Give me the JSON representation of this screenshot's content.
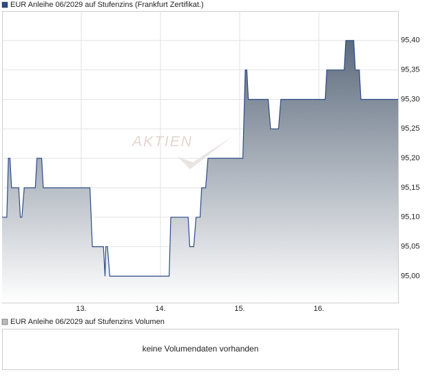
{
  "chart_data": {
    "type": "area",
    "watermark": "AKTIEN",
    "series": [
      {
        "name": "EUR Anleihe 06/2029 auf Stufenzins (Frankfurt Zertifikat.)",
        "color": "#2b4a86",
        "x": [
          12.0,
          12.06,
          12.08,
          12.1,
          12.12,
          12.21,
          12.23,
          12.25,
          12.28,
          12.42,
          12.44,
          12.5,
          12.52,
          13.11,
          13.14,
          13.28,
          13.3,
          13.31,
          13.33,
          13.36,
          14.11,
          14.13,
          14.35,
          14.37,
          14.42,
          14.45,
          14.5,
          14.52,
          14.57,
          14.6,
          15.04,
          15.07,
          15.09,
          15.11,
          15.36,
          15.39,
          15.49,
          15.52,
          16.08,
          16.1,
          16.32,
          16.34,
          16.44,
          16.46,
          16.51,
          16.53,
          17.0
        ],
        "values": [
          95.1,
          95.1,
          95.2,
          95.2,
          95.15,
          95.15,
          95.1,
          95.1,
          95.15,
          95.15,
          95.2,
          95.2,
          95.15,
          95.15,
          95.05,
          95.05,
          95.0,
          95.05,
          95.05,
          95.0,
          95.0,
          95.1,
          95.1,
          95.05,
          95.05,
          95.1,
          95.1,
          95.15,
          95.15,
          95.2,
          95.2,
          95.35,
          95.35,
          95.3,
          95.3,
          95.25,
          95.25,
          95.3,
          95.3,
          95.35,
          95.35,
          95.4,
          95.4,
          95.35,
          95.35,
          95.3,
          95.3
        ]
      }
    ],
    "xlim": [
      12,
      17
    ],
    "xticks": [
      {
        "value": 13,
        "label": "13."
      },
      {
        "value": 14,
        "label": "14."
      },
      {
        "value": 15,
        "label": "15."
      },
      {
        "value": 16,
        "label": "16."
      }
    ],
    "ylim": [
      94.955,
      95.45
    ],
    "yticks": [
      {
        "value": 95.0,
        "label": "95,00"
      },
      {
        "value": 95.05,
        "label": "95,05"
      },
      {
        "value": 95.1,
        "label": "95,10"
      },
      {
        "value": 95.15,
        "label": "95,15"
      },
      {
        "value": 95.2,
        "label": "95,20"
      },
      {
        "value": 95.25,
        "label": "95,25"
      },
      {
        "value": 95.3,
        "label": "95,30"
      },
      {
        "value": 95.35,
        "label": "95,35"
      },
      {
        "value": 95.4,
        "label": "95,40"
      }
    ],
    "grid": true
  },
  "volume_panel": {
    "legend": "EUR Anleihe 06/2029 auf Stufenzins Volumen",
    "message": "keine Volumendaten vorhanden"
  }
}
